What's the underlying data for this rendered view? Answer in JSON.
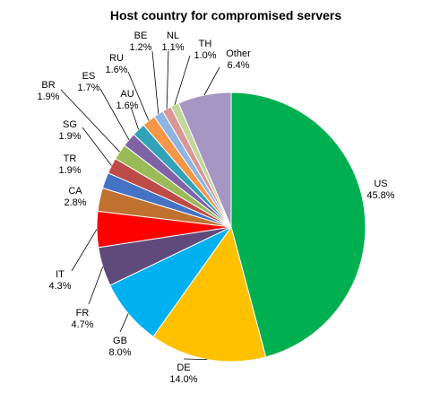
{
  "chart_data": {
    "type": "pie",
    "title": "Host country for compromised servers",
    "slices": [
      {
        "label": "US",
        "value": 45.8,
        "value_label": "45.8%",
        "color": "#00b050"
      },
      {
        "label": "DE",
        "value": 14.0,
        "value_label": "14.0%",
        "color": "#ffc000"
      },
      {
        "label": "GB",
        "value": 8.0,
        "value_label": "8.0%",
        "color": "#00b0f0"
      },
      {
        "label": "FR",
        "value": 4.7,
        "value_label": "4.7%",
        "color": "#604a7b"
      },
      {
        "label": "IT",
        "value": 4.3,
        "value_label": "4.3%",
        "color": "#ff0000"
      },
      {
        "label": "CA",
        "value": 2.8,
        "value_label": "2.8%",
        "color": "#c0712f"
      },
      {
        "label": "TR",
        "value": 1.9,
        "value_label": "1.9%",
        "color": "#4472c4"
      },
      {
        "label": "SG",
        "value": 1.9,
        "value_label": "1.9%",
        "color": "#be4b48"
      },
      {
        "label": "BR",
        "value": 1.9,
        "value_label": "1.9%",
        "color": "#9bbb59"
      },
      {
        "label": "ES",
        "value": 1.7,
        "value_label": "1.7%",
        "color": "#7f63a5"
      },
      {
        "label": "AU",
        "value": 1.6,
        "value_label": "1.6%",
        "color": "#31a2b7"
      },
      {
        "label": "RU",
        "value": 1.6,
        "value_label": "1.6%",
        "color": "#f79646"
      },
      {
        "label": "BE",
        "value": 1.2,
        "value_label": "1.2%",
        "color": "#8eb4e3"
      },
      {
        "label": "NL",
        "value": 1.1,
        "value_label": "1.1%",
        "color": "#d99694"
      },
      {
        "label": "TH",
        "value": 1.0,
        "value_label": "1.0%",
        "color": "#c3d69b"
      },
      {
        "label": "Other",
        "value": 6.4,
        "value_label": "6.4%",
        "color": "#a596c3"
      }
    ]
  }
}
